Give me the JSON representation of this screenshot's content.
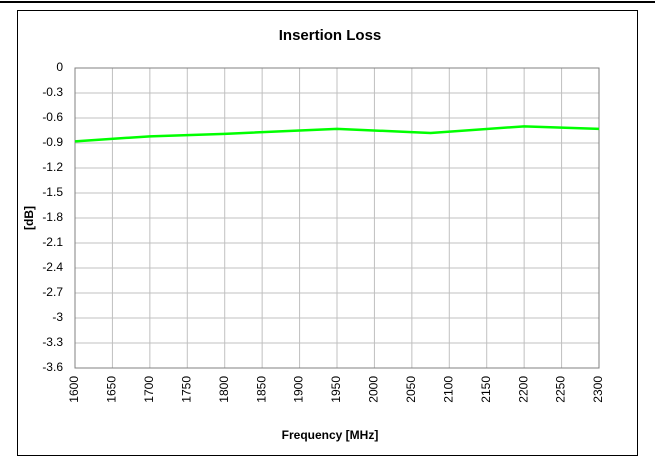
{
  "chart_data": {
    "type": "line",
    "title": "Insertion Loss",
    "xlabel": "Frequency [MHz]",
    "ylabel": "[dB]",
    "x": [
      1600,
      1700,
      1800,
      1950,
      2075,
      2200,
      2300
    ],
    "series": [
      {
        "name": "Insertion Loss",
        "color": "#00ff00",
        "values": [
          -0.88,
          -0.82,
          -0.79,
          -0.73,
          -0.78,
          -0.7,
          -0.73
        ]
      }
    ],
    "xlim": [
      1600,
      2300
    ],
    "xticks": [
      1600,
      1650,
      1700,
      1750,
      1800,
      1850,
      1900,
      1950,
      2000,
      2050,
      2100,
      2150,
      2200,
      2250,
      2300
    ],
    "ylim": [
      -3.6,
      0
    ],
    "yticks": [
      0,
      -0.3,
      -0.6,
      -0.9,
      -1.2,
      -1.5,
      -1.8,
      -2.1,
      -2.4,
      -2.7,
      -3,
      -3.3,
      -3.6
    ],
    "grid": true
  }
}
